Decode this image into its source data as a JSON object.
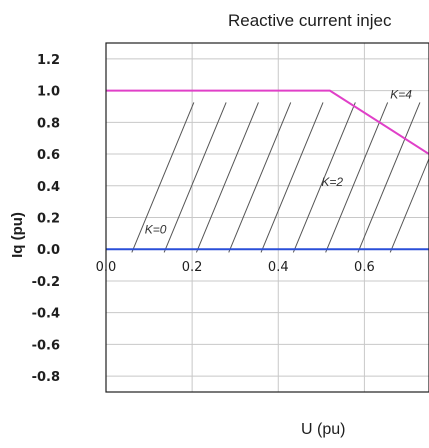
{
  "chart_data": {
    "type": "line",
    "title": "Reactive current injec",
    "xlabel": "U (pu)",
    "ylabel": "Iq (pu)",
    "xlim": [
      0.0,
      0.75
    ],
    "ylim": [
      -0.9,
      1.3
    ],
    "y_ticks": [
      "1.2",
      "1.0",
      "0.8",
      "0.6",
      "0.4",
      "0.2",
      "0.0",
      "-0.2",
      "-0.4",
      "-0.6",
      "-0.8"
    ],
    "x_ticks": [
      "0.0",
      "0.2",
      "0.4",
      "0.6"
    ],
    "grid": true,
    "series": [
      {
        "color": "#e040c8",
        "points": [
          [
            0.0,
            1.0
          ],
          [
            0.52,
            1.0
          ],
          [
            0.75,
            0.6
          ]
        ]
      },
      {
        "color": "#2a4fd8",
        "points": [
          [
            0.0,
            0.0
          ],
          [
            0.75,
            0.0
          ]
        ]
      }
    ],
    "annotations": [
      {
        "text": "K=4",
        "x": 0.66,
        "y": 0.95
      },
      {
        "text": "K=2",
        "x": 0.5,
        "y": 0.4
      },
      {
        "text": "K=0",
        "x": 0.09,
        "y": 0.1
      }
    ]
  }
}
